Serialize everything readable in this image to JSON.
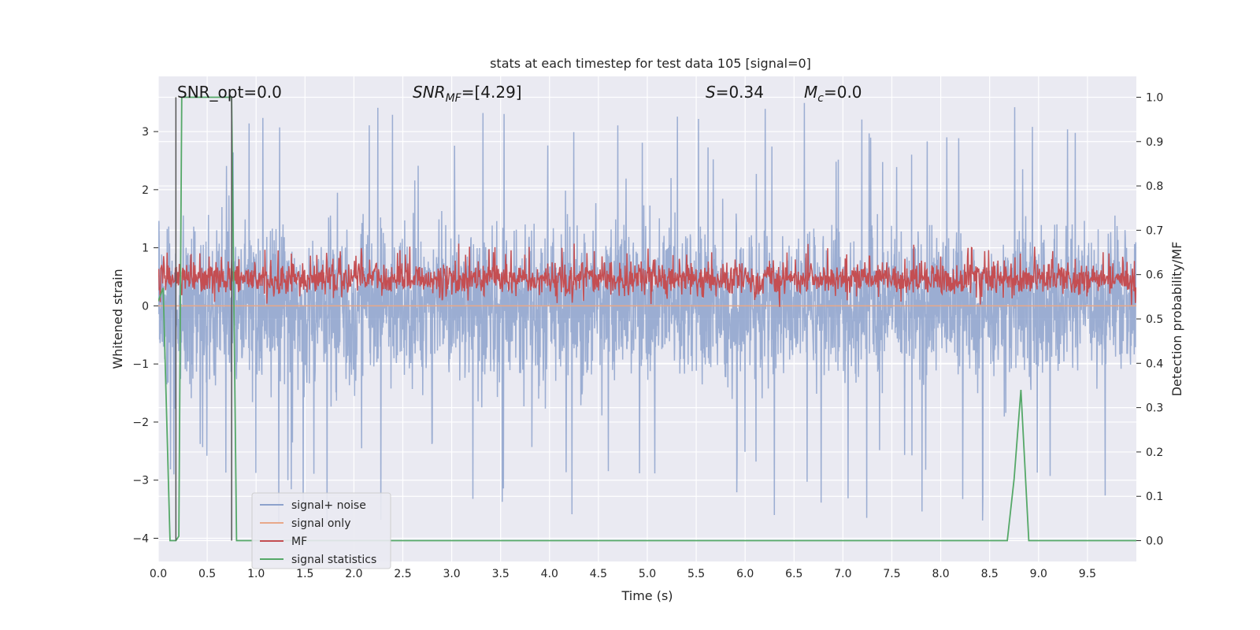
{
  "chart_data": {
    "type": "line",
    "title": "stats at each timestep for test data 105 [signal=0]",
    "xlabel": "Time (s)",
    "ylabel_left": "Whitened strain",
    "ylabel_right": "Detection probability/MF",
    "xlim": [
      0,
      10
    ],
    "ylim_left": [
      -4.4,
      3.95
    ],
    "ylim_right": [
      -0.047,
      1.047
    ],
    "x_ticks": [
      "0.0",
      "0.5",
      "1.0",
      "1.5",
      "2.0",
      "2.5",
      "3.0",
      "3.5",
      "4.0",
      "4.5",
      "5.0",
      "5.5",
      "6.0",
      "6.5",
      "7.0",
      "7.5",
      "8.0",
      "8.5",
      "9.0",
      "9.5"
    ],
    "y_left_ticks": [
      "−4",
      "−3",
      "−2",
      "−1",
      "0",
      "1",
      "2",
      "3"
    ],
    "y_right_ticks": [
      "0.0",
      "0.1",
      "0.2",
      "0.3",
      "0.4",
      "0.5",
      "0.6",
      "0.7",
      "0.8",
      "0.9",
      "1.0"
    ],
    "grid": true,
    "legend_position": "lower-left",
    "annotations": {
      "snr_opt": "SNR_opt=0.0",
      "snr_mf_sym": "SNR",
      "snr_mf_sub": "MF",
      "snr_mf_val": "=[4.29]",
      "s_sym": "S",
      "s_val": "=0.34",
      "mc_sym": "M",
      "mc_sub": "c",
      "mc_val": "=0.0"
    },
    "series": [
      {
        "name": "signal+ noise",
        "color": "#8da2cc",
        "axis": "left",
        "envelope": {
          "typical_range": [
            -1.8,
            2.0
          ],
          "peak_range": [
            -3.8,
            3.5
          ]
        }
      },
      {
        "name": "signal only",
        "color": "#e8a889",
        "axis": "left",
        "values": "zero"
      },
      {
        "name": "MF",
        "color": "#c44e52",
        "axis": "right",
        "typical_range": [
          0.54,
          0.64
        ]
      },
      {
        "name": "signal statistics",
        "color": "#55a868",
        "axis": "right",
        "x": [
          0.0,
          0.05,
          0.12,
          0.18,
          0.21,
          0.24,
          0.27,
          0.35,
          0.5,
          0.6,
          0.7,
          0.75,
          0.8,
          0.85,
          1.0,
          2.0,
          4.0,
          6.0,
          8.0,
          8.68,
          8.75,
          8.82,
          8.9,
          9.0,
          10.0
        ],
        "y": [
          0.54,
          0.57,
          0.0,
          0.0,
          0.01,
          1.0,
          1.0,
          1.0,
          1.0,
          1.0,
          1.0,
          1.0,
          0.0,
          0.0,
          0.0,
          0.0,
          0.0,
          0.0,
          0.0,
          0.0,
          0.14,
          0.34,
          0.0,
          0.0,
          0.0
        ]
      },
      {
        "name": "",
        "color": "#555555",
        "axis": "right",
        "vlines": [
          {
            "x": 0.18,
            "y0": 0.0,
            "y1": 1.0
          },
          {
            "x": 0.75,
            "y0": 0.0,
            "y1": 1.0
          }
        ]
      }
    ]
  }
}
